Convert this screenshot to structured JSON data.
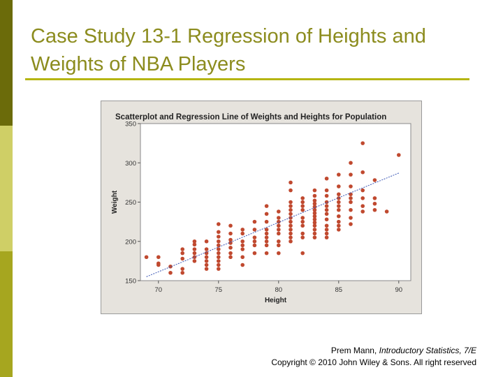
{
  "slide": {
    "title": "Case Study 13-1 Regression of Heights and Weights of NBA Players",
    "credit_author": "Prem Mann, ",
    "credit_book": "Introductory Statistics, 7/E",
    "credit_copyright": "Copyright © 2010 John Wiley & Sons. All right reserved"
  },
  "colors": {
    "accent_dark": "#6b6b0a",
    "accent_light": "#cfcf66",
    "accent_mid": "#a6a61f",
    "title": "#8c8c1e",
    "rule": "#b5b512",
    "point": "#c0492f",
    "line": "#3a56b5"
  },
  "chart_data": {
    "type": "scatter",
    "title": "Scatterplot and Regression Line of Weights and Heights for Population",
    "xlabel": "Height",
    "ylabel": "Weight",
    "xlim": [
      68.5,
      91
    ],
    "ylim": [
      150,
      350
    ],
    "xticks": [
      70,
      75,
      80,
      85,
      90
    ],
    "yticks": [
      150,
      200,
      250,
      300,
      350
    ],
    "grid": false,
    "regression_line": {
      "x": [
        69,
        90
      ],
      "y": [
        155,
        287
      ]
    },
    "points": [
      [
        69,
        180
      ],
      [
        70,
        180
      ],
      [
        70,
        172
      ],
      [
        70,
        170
      ],
      [
        71,
        168
      ],
      [
        71,
        160
      ],
      [
        72,
        190
      ],
      [
        72,
        185
      ],
      [
        72,
        178
      ],
      [
        72,
        165
      ],
      [
        72,
        160
      ],
      [
        73,
        200
      ],
      [
        73,
        196
      ],
      [
        73,
        190
      ],
      [
        73,
        185
      ],
      [
        73,
        180
      ],
      [
        73,
        175
      ],
      [
        74,
        200
      ],
      [
        74,
        190
      ],
      [
        74,
        185
      ],
      [
        74,
        180
      ],
      [
        74,
        175
      ],
      [
        74,
        170
      ],
      [
        74,
        165
      ],
      [
        75,
        222
      ],
      [
        75,
        212
      ],
      [
        75,
        206
      ],
      [
        75,
        200
      ],
      [
        75,
        195
      ],
      [
        75,
        190
      ],
      [
        75,
        185
      ],
      [
        75,
        180
      ],
      [
        75,
        175
      ],
      [
        75,
        170
      ],
      [
        75,
        165
      ],
      [
        76,
        220
      ],
      [
        76,
        210
      ],
      [
        76,
        202
      ],
      [
        76,
        198
      ],
      [
        76,
        192
      ],
      [
        76,
        185
      ],
      [
        76,
        180
      ],
      [
        77,
        215
      ],
      [
        77,
        210
      ],
      [
        77,
        200
      ],
      [
        77,
        195
      ],
      [
        77,
        190
      ],
      [
        77,
        180
      ],
      [
        77,
        170
      ],
      [
        78,
        225
      ],
      [
        78,
        215
      ],
      [
        78,
        205
      ],
      [
        78,
        200
      ],
      [
        78,
        195
      ],
      [
        78,
        185
      ],
      [
        79,
        245
      ],
      [
        79,
        235
      ],
      [
        79,
        225
      ],
      [
        79,
        215
      ],
      [
        79,
        210
      ],
      [
        79,
        205
      ],
      [
        79,
        200
      ],
      [
        79,
        195
      ],
      [
        79,
        185
      ],
      [
        80,
        238
      ],
      [
        80,
        230
      ],
      [
        80,
        225
      ],
      [
        80,
        220
      ],
      [
        80,
        215
      ],
      [
        80,
        210
      ],
      [
        80,
        200
      ],
      [
        80,
        195
      ],
      [
        80,
        185
      ],
      [
        81,
        275
      ],
      [
        81,
        265
      ],
      [
        81,
        250
      ],
      [
        81,
        245
      ],
      [
        81,
        240
      ],
      [
        81,
        235
      ],
      [
        81,
        230
      ],
      [
        81,
        225
      ],
      [
        81,
        220
      ],
      [
        81,
        215
      ],
      [
        81,
        210
      ],
      [
        81,
        205
      ],
      [
        81,
        200
      ],
      [
        82,
        255
      ],
      [
        82,
        250
      ],
      [
        82,
        245
      ],
      [
        82,
        240
      ],
      [
        82,
        230
      ],
      [
        82,
        225
      ],
      [
        82,
        220
      ],
      [
        82,
        210
      ],
      [
        82,
        205
      ],
      [
        82,
        185
      ],
      [
        83,
        265
      ],
      [
        83,
        258
      ],
      [
        83,
        252
      ],
      [
        83,
        248
      ],
      [
        83,
        244
      ],
      [
        83,
        240
      ],
      [
        83,
        236
      ],
      [
        83,
        232
      ],
      [
        83,
        228
      ],
      [
        83,
        224
      ],
      [
        83,
        220
      ],
      [
        83,
        215
      ],
      [
        83,
        210
      ],
      [
        83,
        205
      ],
      [
        84,
        280
      ],
      [
        84,
        265
      ],
      [
        84,
        258
      ],
      [
        84,
        250
      ],
      [
        84,
        245
      ],
      [
        84,
        240
      ],
      [
        84,
        235
      ],
      [
        84,
        228
      ],
      [
        84,
        220
      ],
      [
        84,
        215
      ],
      [
        84,
        210
      ],
      [
        84,
        205
      ],
      [
        85,
        285
      ],
      [
        85,
        270
      ],
      [
        85,
        260
      ],
      [
        85,
        255
      ],
      [
        85,
        250
      ],
      [
        85,
        245
      ],
      [
        85,
        240
      ],
      [
        85,
        232
      ],
      [
        85,
        225
      ],
      [
        85,
        220
      ],
      [
        85,
        215
      ],
      [
        86,
        300
      ],
      [
        86,
        285
      ],
      [
        86,
        270
      ],
      [
        86,
        260
      ],
      [
        86,
        255
      ],
      [
        86,
        250
      ],
      [
        86,
        240
      ],
      [
        86,
        230
      ],
      [
        86,
        222
      ],
      [
        87,
        325
      ],
      [
        87,
        288
      ],
      [
        87,
        265
      ],
      [
        87,
        255
      ],
      [
        87,
        245
      ],
      [
        87,
        238
      ],
      [
        88,
        278
      ],
      [
        88,
        255
      ],
      [
        88,
        248
      ],
      [
        88,
        240
      ],
      [
        89,
        238
      ],
      [
        90,
        310
      ]
    ]
  }
}
